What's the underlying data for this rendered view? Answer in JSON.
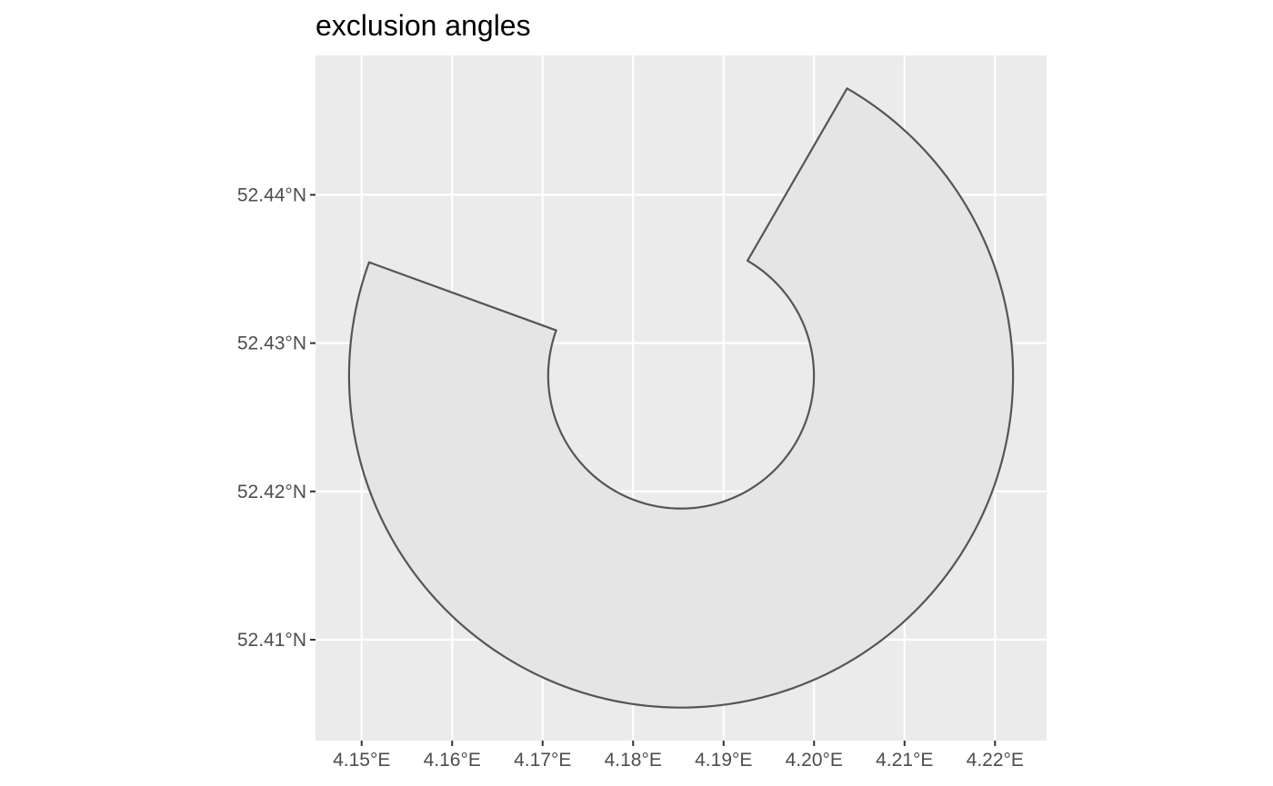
{
  "chart_data": {
    "type": "map",
    "title": "exclusion angles",
    "xlabel": "",
    "ylabel": "",
    "x_ticks": [
      {
        "value": 4.15,
        "label": "4.15°E"
      },
      {
        "value": 4.16,
        "label": "4.16°E"
      },
      {
        "value": 4.17,
        "label": "4.17°E"
      },
      {
        "value": 4.18,
        "label": "4.18°E"
      },
      {
        "value": 4.19,
        "label": "4.19°E"
      },
      {
        "value": 4.2,
        "label": "4.20°E"
      },
      {
        "value": 4.21,
        "label": "4.21°E"
      },
      {
        "value": 4.22,
        "label": "4.22°E"
      }
    ],
    "y_ticks": [
      {
        "value": 52.41,
        "label": "52.41°N"
      },
      {
        "value": 52.42,
        "label": "52.42°N"
      },
      {
        "value": 52.43,
        "label": "52.43°N"
      },
      {
        "value": 52.44,
        "label": "52.44°N"
      }
    ],
    "xlim": [
      4.1449,
      4.2257
    ],
    "ylim": [
      52.4032,
      52.4494
    ],
    "grid": true,
    "shape": {
      "kind": "annular sector",
      "center": [
        4.1853,
        52.4278
      ],
      "inner_radius_km": 0.9968,
      "outer_radius_km": 2.4907,
      "excluded_bearing_deg": [
        30,
        290
      ],
      "fill": "#e5e5e5",
      "stroke": "#555555"
    },
    "colors": {
      "panel": "#ebebeb",
      "gridline": "#ffffff",
      "tick": "#333333"
    }
  }
}
